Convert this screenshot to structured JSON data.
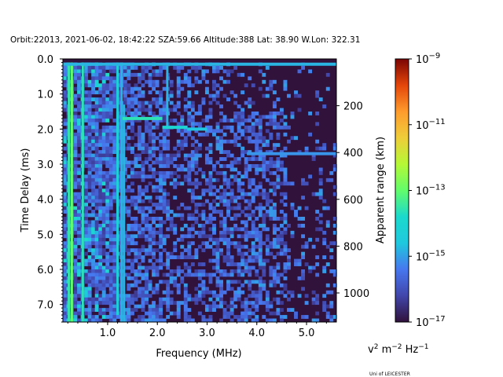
{
  "title": "Orbit:22013, 2021-06-02, 18:42:22 SZA:59.66 Altitude:388 Lat: 38.90 W.Lon: 322.31",
  "credit": "Uni of LEICESTER",
  "chart_data": {
    "type": "heatmap",
    "xlabel": "Frequency (MHz)",
    "ylabel": "Time Delay (ms)",
    "y2label": "Apparent range (km)",
    "xlim": [
      0.1,
      5.6
    ],
    "ylim": [
      7.5,
      0.0
    ],
    "xticks": [
      1.0,
      2.0,
      3.0,
      4.0,
      5.0
    ],
    "xtick_labels": [
      "1.0",
      "2.0",
      "3.0",
      "4.0",
      "5.0"
    ],
    "yticks": [
      0.0,
      1.0,
      2.0,
      3.0,
      4.0,
      5.0,
      6.0,
      7.0
    ],
    "ytick_labels": [
      "0.0",
      "1.0",
      "2.0",
      "3.0",
      "4.0",
      "5.0",
      "6.0",
      "7.0"
    ],
    "y2ticks_km": [
      200,
      400,
      600,
      800,
      1000
    ],
    "y2tick_labels": [
      "200",
      "400",
      "600",
      "800",
      "1000"
    ],
    "colorbar": {
      "label_parts": [
        "v",
        "2",
        " m",
        "−2",
        " Hz",
        "−1"
      ],
      "scale": "log",
      "range": [
        1e-17,
        1e-09
      ],
      "ticks": [
        1e-17,
        1e-15,
        1e-13,
        1e-11,
        1e-09
      ],
      "tick_bases": [
        "10",
        "10",
        "10",
        "10",
        "10"
      ],
      "tick_exps": [
        "−17",
        "−15",
        "−13",
        "−11",
        "−9"
      ],
      "colormap": "turbo"
    },
    "features": [
      {
        "kind": "vertical-line",
        "x": 0.22,
        "y": [
          0.1,
          7.5
        ],
        "intensity": -13.5
      },
      {
        "kind": "vertical-line",
        "x": 0.28,
        "y": [
          0.1,
          7.5
        ],
        "intensity": -13.0
      },
      {
        "kind": "vertical-line",
        "x": 0.5,
        "y": [
          0.1,
          7.5
        ],
        "intensity": -13.6
      },
      {
        "kind": "vertical-line",
        "x": 1.2,
        "y": [
          0.1,
          7.3
        ],
        "intensity": -14.2
      },
      {
        "kind": "vertical-line",
        "x": 1.28,
        "y": [
          0.1,
          7.5
        ],
        "intensity": -14.8
      },
      {
        "kind": "vertical-line",
        "x": 1.33,
        "y": [
          1.3,
          7.5
        ],
        "intensity": -14.8
      },
      {
        "kind": "vertical-line",
        "x": 2.2,
        "y": [
          0.2,
          2.0
        ],
        "intensity": -14.8
      },
      {
        "kind": "horizontal-line",
        "x": [
          0.1,
          5.6
        ],
        "y": 0.15,
        "intensity": -14.8
      },
      {
        "kind": "horizontal-line",
        "x": [
          1.3,
          2.1
        ],
        "y": 1.7,
        "intensity": -13.6
      },
      {
        "kind": "horizontal-line",
        "x": [
          2.1,
          2.6
        ],
        "y": 1.95,
        "intensity": -14.0
      },
      {
        "kind": "horizontal-line",
        "x": [
          2.6,
          3.0
        ],
        "y": 2.0,
        "intensity": -14.6
      },
      {
        "kind": "horizontal-line",
        "x": [
          3.8,
          5.6
        ],
        "y": 2.7,
        "intensity": -15.1
      }
    ]
  }
}
